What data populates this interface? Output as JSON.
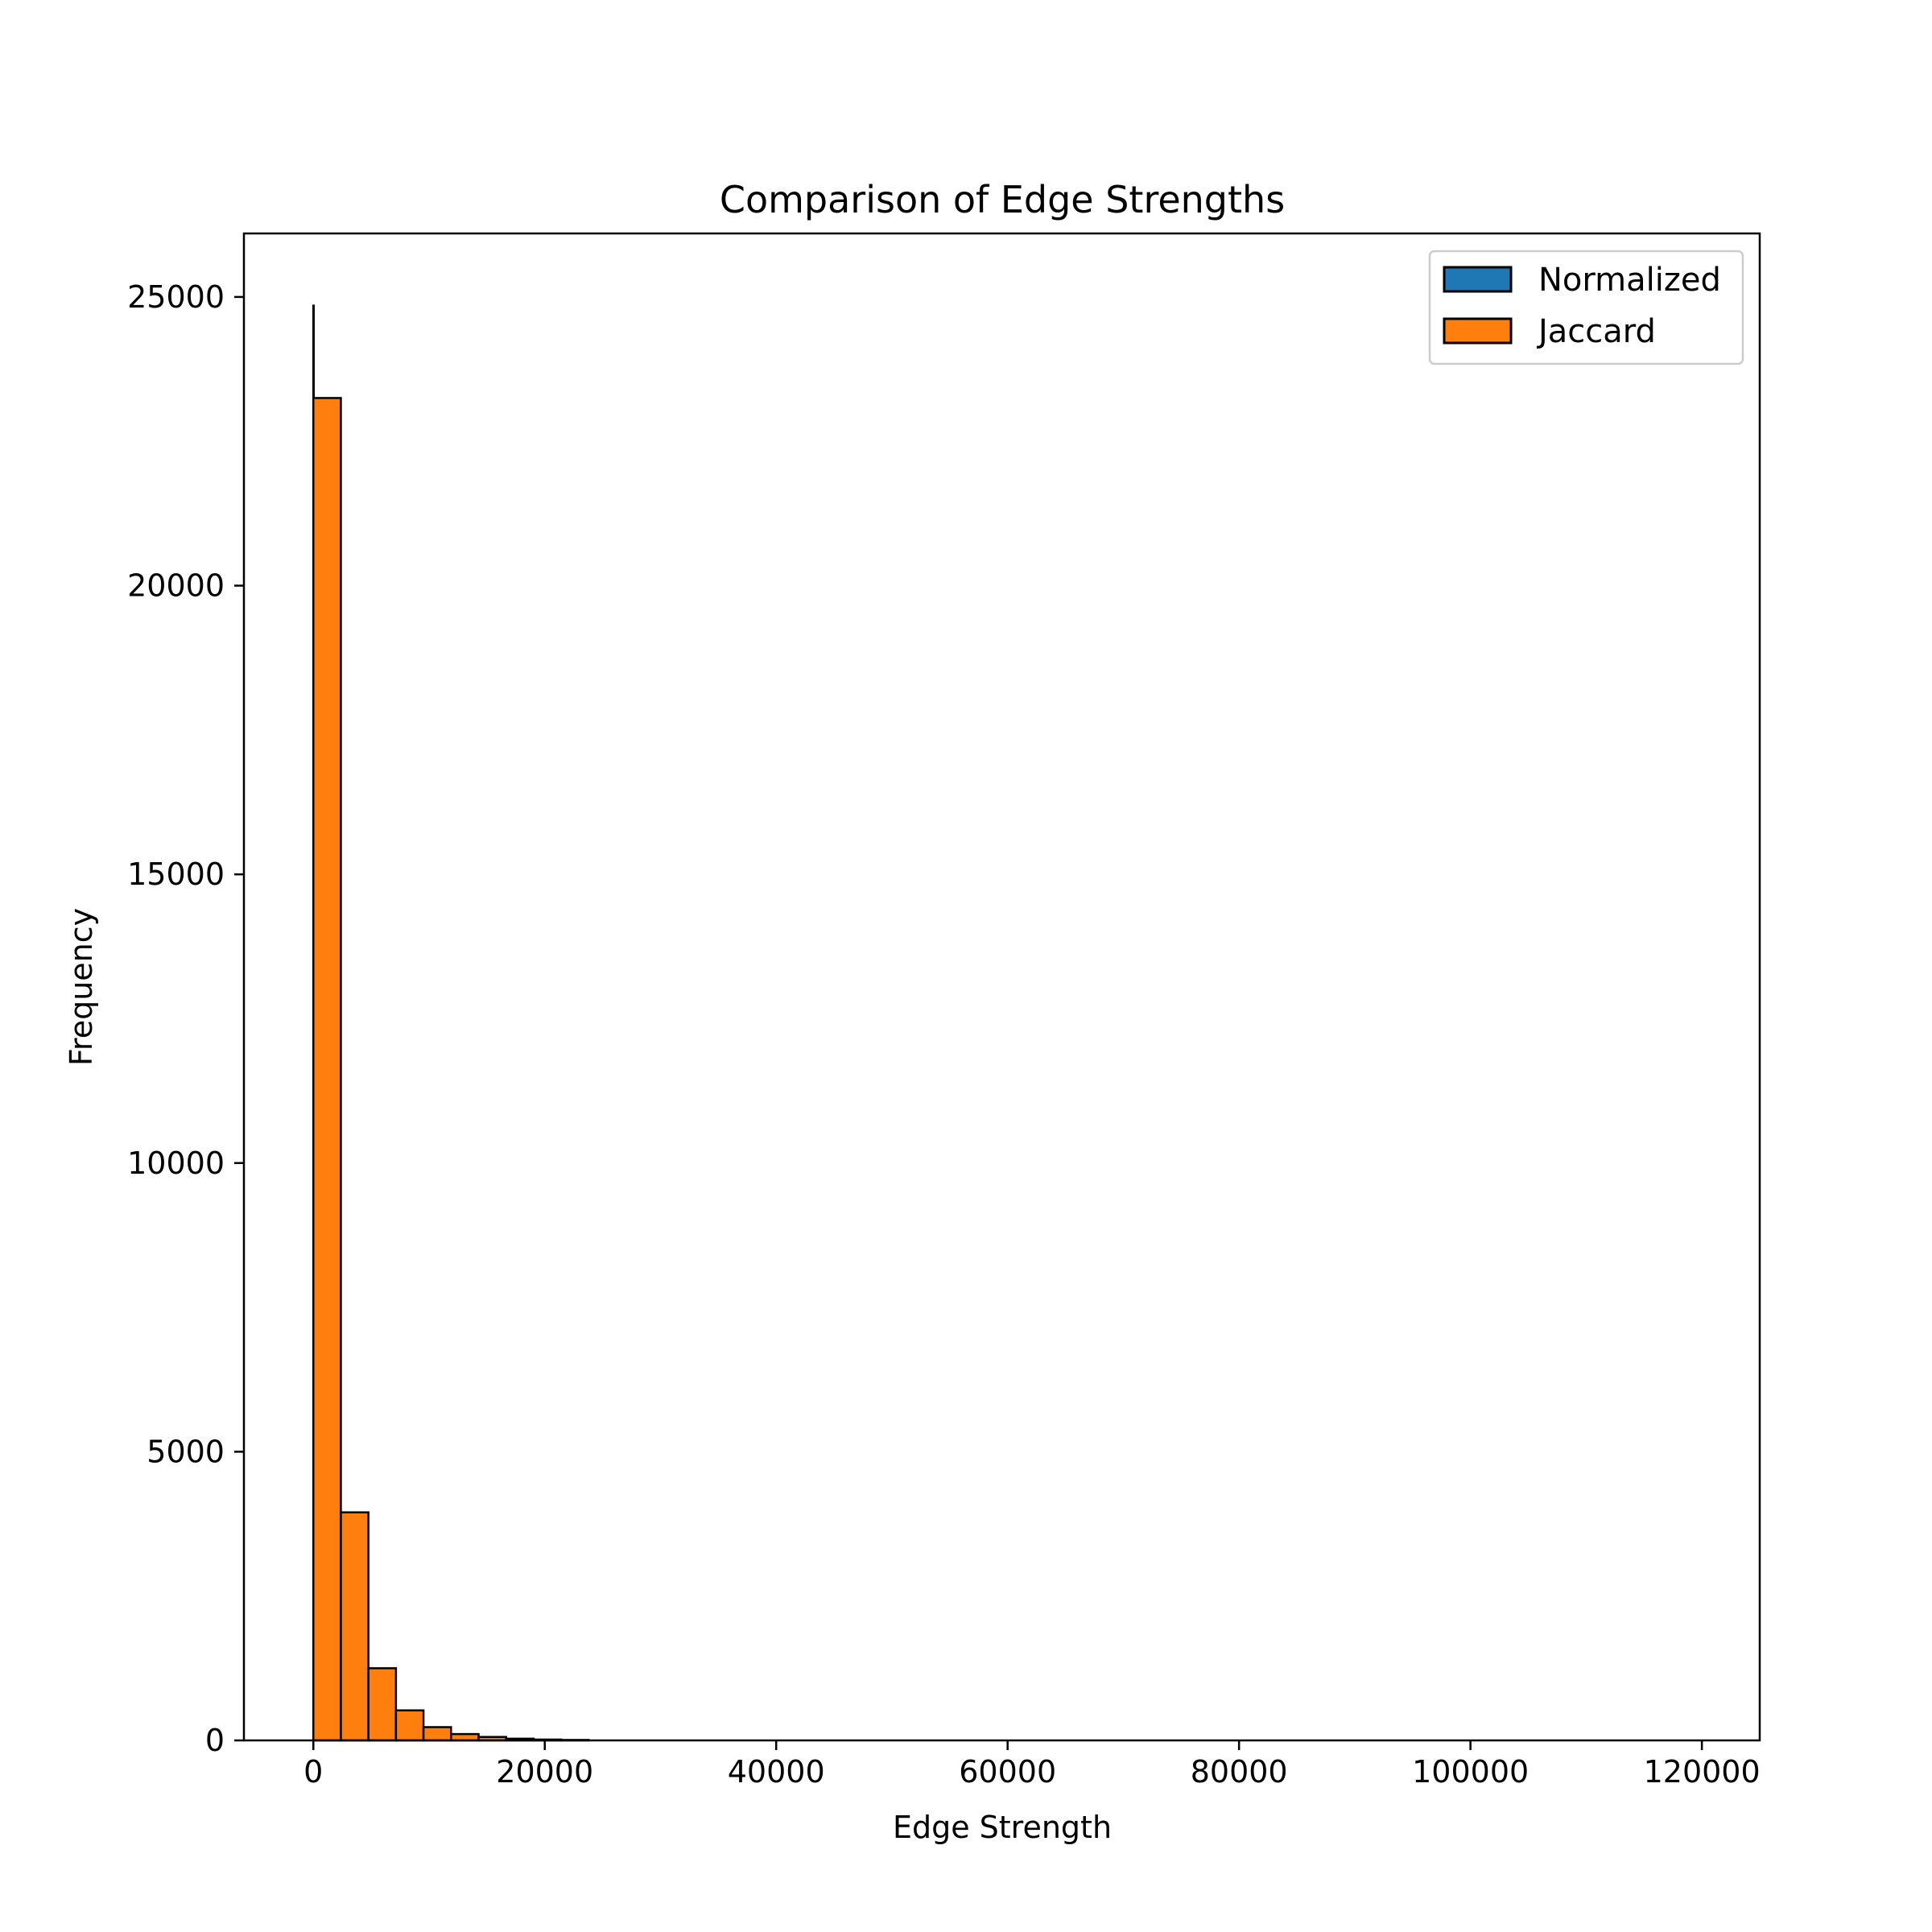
{
  "chart_data": {
    "type": "bar",
    "title": "Comparison of Edge Strengths",
    "xlabel": "Edge Strength",
    "ylabel": "Frequency",
    "xlim": [
      -6000,
      125000
    ],
    "ylim": [
      0,
      26100
    ],
    "xticks": [
      0,
      20000,
      40000,
      60000,
      80000,
      100000,
      120000
    ],
    "yticks": [
      0,
      5000,
      10000,
      15000,
      20000,
      25000
    ],
    "legend_position": "top-right",
    "series": [
      {
        "name": "Normalized",
        "color": "#1f77b4",
        "bin_edges": [
          0,
          1,
          2
        ],
        "values": [
          24850,
          0
        ]
      },
      {
        "name": "Jaccard",
        "color": "#ff7f0e",
        "bin_edges": [
          0,
          2380,
          4760,
          7140,
          9520,
          11900,
          14280,
          16660,
          19040,
          21420,
          23800,
          119000
        ],
        "values": [
          23250,
          3950,
          1250,
          520,
          230,
          110,
          60,
          30,
          15,
          8,
          0
        ]
      }
    ]
  }
}
